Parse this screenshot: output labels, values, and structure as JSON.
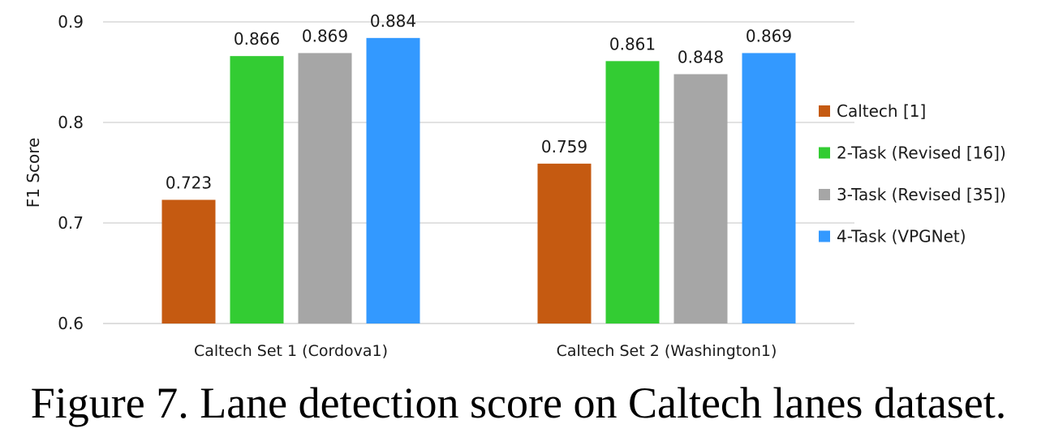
{
  "caption": "Figure 7. Lane detection score on Caltech lanes dataset.",
  "chart_data": {
    "type": "bar",
    "title": "",
    "ylabel": "F1 Score",
    "xlabel": "",
    "ylim": [
      0.6,
      0.9
    ],
    "yticks": [
      "0.6",
      "0.7",
      "0.8",
      "0.9"
    ],
    "categories": [
      "Caltech Set 1 (Cordova1)",
      "Caltech Set 2 (Washington1)"
    ],
    "series": [
      {
        "name": "Caltech [1]",
        "color": "#c55a11",
        "values": [
          0.723,
          0.759
        ],
        "labels": [
          "0.723",
          "0.759"
        ]
      },
      {
        "name": "2-Task (Revised [16])",
        "color": "#33cc33",
        "values": [
          0.866,
          0.861
        ],
        "labels": [
          "0.866",
          "0.861"
        ]
      },
      {
        "name": "3-Task (Revised [35])",
        "color": "#a6a6a6",
        "values": [
          0.869,
          0.848
        ],
        "labels": [
          "0.869",
          "0.848"
        ]
      },
      {
        "name": "4-Task (VPGNet)",
        "color": "#3399ff",
        "values": [
          0.884,
          0.869
        ],
        "labels": [
          "0.884",
          "0.869"
        ]
      }
    ],
    "grid": "horizontal",
    "legend_position": "right"
  }
}
